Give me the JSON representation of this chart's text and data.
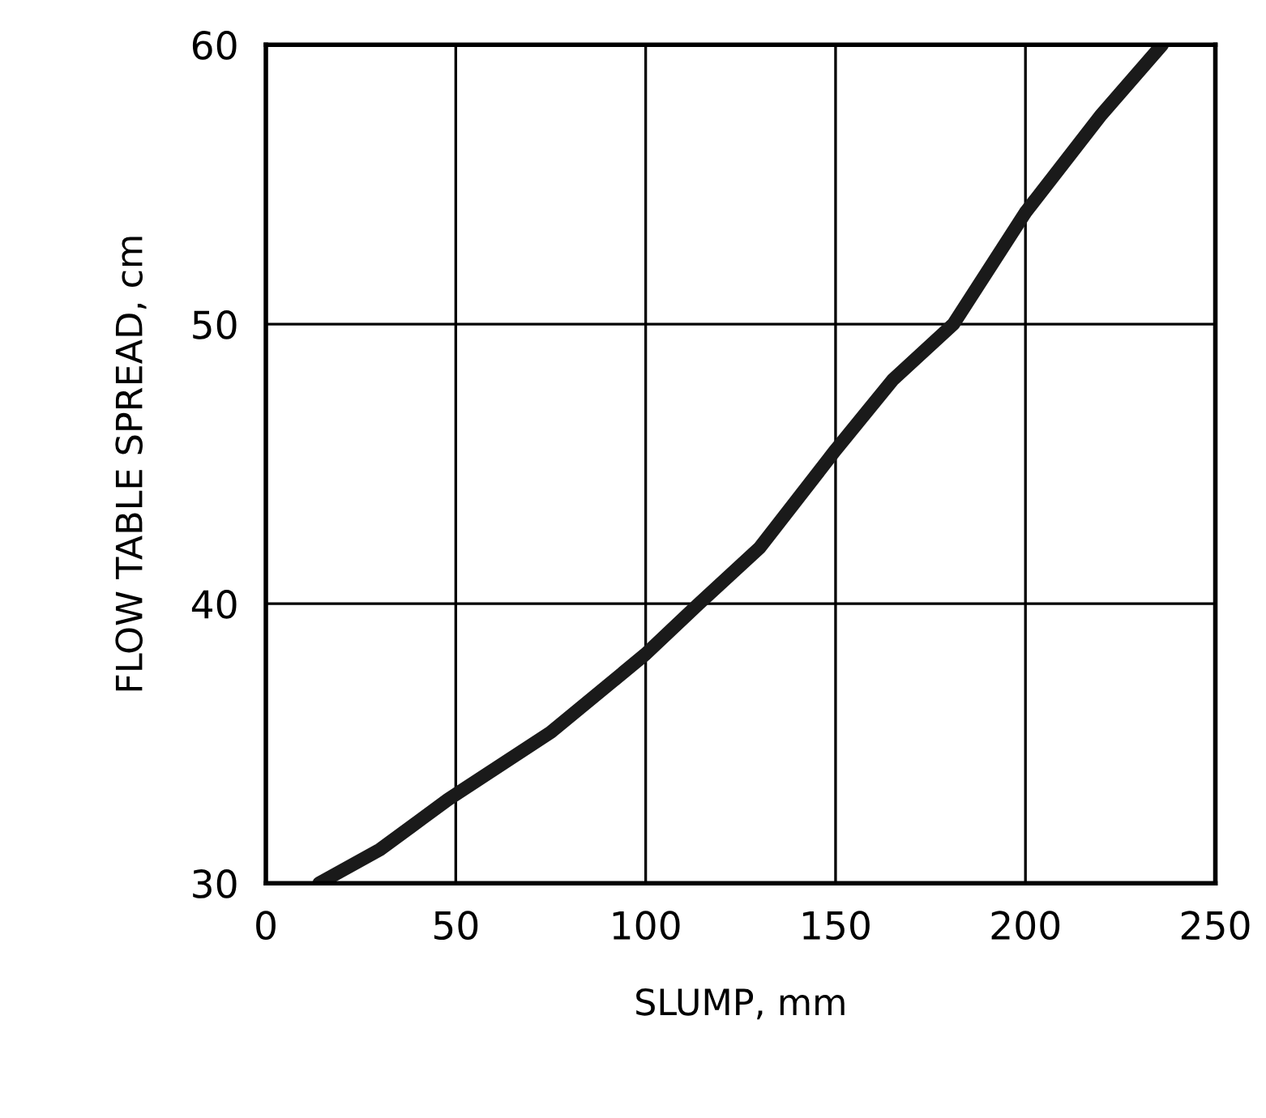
{
  "chart_data": {
    "type": "line",
    "xlabel": "SLUMP, mm",
    "ylabel": "FLOW TABLE SPREAD, cm",
    "series": [
      {
        "color": "#1a1a1a",
        "x": [
          14,
          30,
          48,
          75,
          100,
          114,
          130,
          150,
          165,
          181,
          200,
          220,
          236
        ],
        "values": [
          30,
          31.2,
          33,
          35.4,
          38.2,
          40,
          42,
          45.5,
          48,
          50,
          54,
          57.5,
          60
        ]
      }
    ],
    "xlim": [
      0,
      250
    ],
    "ylim": [
      30,
      60
    ],
    "xticks": [
      0,
      50,
      100,
      150,
      200,
      250
    ],
    "yticks": [
      30,
      40,
      50,
      60
    ],
    "grid": true,
    "marker": "none",
    "line_style": "solid"
  }
}
